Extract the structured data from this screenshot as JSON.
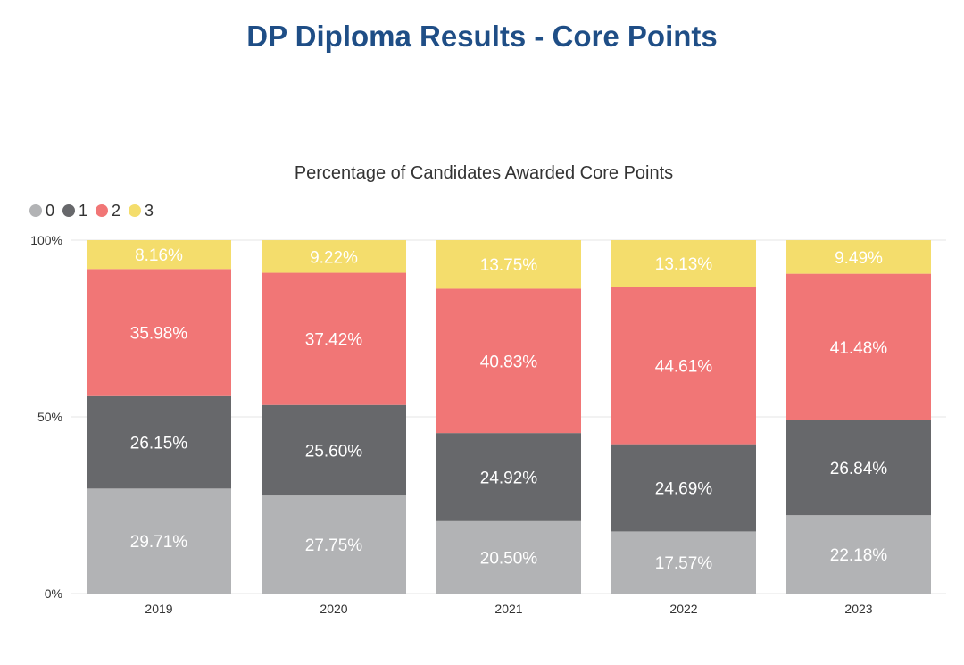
{
  "page": {
    "title": "DP Diploma Results - Core Points"
  },
  "chart_data": {
    "type": "bar",
    "stacked": true,
    "title": "Percentage of Candidates Awarded Core Points",
    "xlabel": "",
    "ylabel": "",
    "categories": [
      "2019",
      "2020",
      "2021",
      "2022",
      "2023"
    ],
    "ylim": [
      0,
      100
    ],
    "yticks": [
      "0%",
      "50%",
      "100%"
    ],
    "grid": true,
    "legend_position": "top-left",
    "series": [
      {
        "name": "0",
        "color": "#b2b3b5",
        "values": [
          29.71,
          27.75,
          20.5,
          17.57,
          22.18
        ],
        "labels": [
          "29.71%",
          "27.75%",
          "20.50%",
          "17.57%",
          "22.18%"
        ]
      },
      {
        "name": "1",
        "color": "#67686b",
        "values": [
          26.15,
          25.6,
          24.92,
          24.69,
          26.84
        ],
        "labels": [
          "26.15%",
          "25.60%",
          "24.92%",
          "24.69%",
          "26.84%"
        ]
      },
      {
        "name": "2",
        "color": "#f17676",
        "values": [
          35.98,
          37.42,
          40.83,
          44.61,
          41.48
        ],
        "labels": [
          "35.98%",
          "37.42%",
          "40.83%",
          "44.61%",
          "41.48%"
        ]
      },
      {
        "name": "3",
        "color": "#f4dd6c",
        "values": [
          8.16,
          9.22,
          13.75,
          13.13,
          9.49
        ],
        "labels": [
          "8.16%",
          "9.22%",
          "13.75%",
          "13.13%",
          "9.49%"
        ]
      }
    ]
  }
}
